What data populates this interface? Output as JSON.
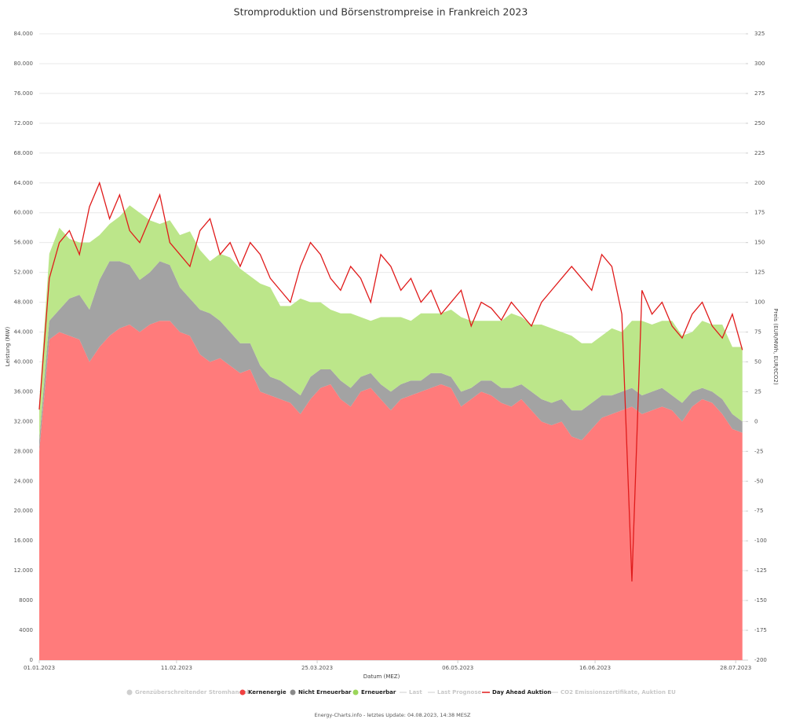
{
  "chart_data": {
    "type": "stacked_area_line",
    "title": "Stromproduktion und Börsenstrompreise in Frankreich 2023",
    "x_label": "Datum (MEZ)",
    "y_label": "Leistung (MW)",
    "y2_label": "Preis (EUR/MWh, EUR/tCO2)",
    "footer": "Energy-Charts.info - letztes Update: 04.08.2023, 14:38 MESZ",
    "x": [
      "01.01.2023",
      "04.01.2023",
      "07.01.2023",
      "10.01.2023",
      "13.01.2023",
      "16.01.2023",
      "19.01.2023",
      "22.01.2023",
      "25.01.2023",
      "28.01.2023",
      "31.01.2023",
      "03.02.2023",
      "06.02.2023",
      "09.02.2023",
      "12.02.2023",
      "15.02.2023",
      "18.02.2023",
      "21.02.2023",
      "24.02.2023",
      "27.02.2023",
      "02.03.2023",
      "05.03.2023",
      "08.03.2023",
      "11.03.2023",
      "14.03.2023",
      "17.03.2023",
      "20.03.2023",
      "23.03.2023",
      "26.03.2023",
      "29.03.2023",
      "01.04.2023",
      "04.04.2023",
      "07.04.2023",
      "10.04.2023",
      "13.04.2023",
      "16.04.2023",
      "19.04.2023",
      "22.04.2023",
      "25.04.2023",
      "28.04.2023",
      "01.05.2023",
      "04.05.2023",
      "07.05.2023",
      "10.05.2023",
      "13.05.2023",
      "16.05.2023",
      "19.05.2023",
      "22.05.2023",
      "25.05.2023",
      "28.05.2023",
      "31.05.2023",
      "03.06.2023",
      "06.06.2023",
      "09.06.2023",
      "12.06.2023",
      "15.06.2023",
      "18.06.2023",
      "21.06.2023",
      "24.06.2023",
      "27.06.2023",
      "30.06.2023",
      "03.07.2023",
      "06.07.2023",
      "09.07.2023",
      "12.07.2023",
      "15.07.2023",
      "18.07.2023",
      "21.07.2023",
      "24.07.2023",
      "27.07.2023",
      "30.07.2023"
    ],
    "xlim": [
      "01.01.2023",
      "31.07.2023"
    ],
    "xticks": [
      "01.01.2023",
      "11.02.2023",
      "25.03.2023",
      "06.05.2023",
      "16.06.2023",
      "28.07.2023"
    ],
    "ylim": [
      0,
      84000
    ],
    "yticks": [
      0,
      4000,
      8000,
      {
        "value": 12000,
        "label": "12.000"
      },
      {
        "value": 16000,
        "label": "16.000"
      },
      {
        "value": 20000,
        "label": "20.000"
      },
      {
        "value": 24000,
        "label": "24.000"
      },
      {
        "value": 28000,
        "label": "28.000"
      },
      {
        "value": 32000,
        "label": "32.000"
      },
      {
        "value": 36000,
        "label": "36.000"
      },
      {
        "value": 40000,
        "label": "40.000"
      },
      {
        "value": 44000,
        "label": "44.000"
      },
      {
        "value": 48000,
        "label": "48.000"
      },
      {
        "value": 52000,
        "label": "52.000"
      },
      {
        "value": 56000,
        "label": "56.000"
      },
      {
        "value": 60000,
        "label": "60.000"
      },
      {
        "value": 64000,
        "label": "64.000"
      },
      {
        "value": 68000,
        "label": "68.000"
      },
      {
        "value": 72000,
        "label": "72.000"
      },
      {
        "value": 76000,
        "label": "76.000"
      },
      {
        "value": 80000,
        "label": "80.000"
      },
      {
        "value": 84000,
        "label": "84.000"
      }
    ],
    "y2lim": [
      -200,
      325
    ],
    "y2ticks": [
      -200,
      -175,
      -150,
      -125,
      -100,
      -75,
      -50,
      -25,
      0,
      25,
      50,
      75,
      100,
      125,
      150,
      175,
      200,
      225,
      250,
      275,
      300,
      325
    ],
    "grid": true,
    "series": [
      {
        "name": "Kernenergie",
        "color": "#ff7b7b",
        "stacked": true,
        "values": [
          28000,
          43000,
          44000,
          43500,
          43000,
          40000,
          42000,
          43500,
          44500,
          45000,
          44000,
          45000,
          45500,
          45500,
          44000,
          43500,
          41000,
          40000,
          40500,
          39500,
          38500,
          39000,
          36000,
          35500,
          35000,
          34500,
          33000,
          35000,
          36500,
          37000,
          35000,
          34000,
          36000,
          36500,
          35000,
          33500,
          35000,
          35500,
          36000,
          36500,
          37000,
          36500,
          34000,
          35000,
          36000,
          35500,
          34500,
          34000,
          35000,
          33500,
          32000,
          31500,
          32000,
          30000,
          29500,
          31000,
          32500,
          33000,
          33500,
          34000,
          33000,
          33500,
          34000,
          33500,
          32000,
          34000,
          35000,
          34500,
          33000,
          31000,
          30500
        ]
      },
      {
        "name": "Nicht Erneuerbar",
        "color": "#a3a3a3",
        "stacked": true,
        "values": [
          1500,
          2500,
          3000,
          5000,
          6000,
          7000,
          9000,
          10000,
          9000,
          8000,
          7000,
          7000,
          8000,
          7500,
          6000,
          5000,
          6000,
          6500,
          5000,
          4500,
          4000,
          3500,
          3500,
          2500,
          2500,
          2000,
          2500,
          3000,
          2500,
          2000,
          2500,
          2500,
          2000,
          2000,
          2000,
          2500,
          2000,
          2000,
          1500,
          2000,
          1500,
          1500,
          2000,
          1500,
          1500,
          2000,
          2000,
          2500,
          2000,
          2500,
          3000,
          3000,
          3000,
          3500,
          4000,
          3500,
          3000,
          2500,
          2500,
          2500,
          2500,
          2500,
          2500,
          2000,
          2500,
          2000,
          1500,
          1500,
          2000,
          2000,
          1500
        ]
      },
      {
        "name": "Erneuerbar",
        "color": "#bce68a",
        "stacked": true,
        "values": [
          5000,
          9000,
          11000,
          8000,
          7000,
          9000,
          6000,
          5000,
          6000,
          8000,
          9000,
          7000,
          5000,
          6000,
          7000,
          9000,
          8000,
          7000,
          9000,
          10000,
          10000,
          9000,
          11000,
          12000,
          10000,
          11000,
          13000,
          10000,
          9000,
          8000,
          9000,
          10000,
          8000,
          7000,
          9000,
          10000,
          9000,
          8000,
          9000,
          8000,
          8000,
          9000,
          10000,
          9000,
          8000,
          8000,
          9000,
          10000,
          9000,
          9000,
          10000,
          10000,
          9000,
          10000,
          9000,
          8000,
          8000,
          9000,
          8000,
          9000,
          10000,
          9000,
          9000,
          10000,
          9000,
          8000,
          9000,
          9000,
          10000,
          9000,
          10000
        ]
      },
      {
        "name": "Day Ahead Auktion",
        "color": "#e01b1b",
        "axis": "y2",
        "values": [
          10,
          120,
          150,
          160,
          140,
          180,
          200,
          170,
          190,
          160,
          150,
          170,
          190,
          150,
          140,
          130,
          160,
          170,
          140,
          150,
          130,
          150,
          140,
          120,
          110,
          100,
          130,
          150,
          140,
          120,
          110,
          130,
          120,
          100,
          140,
          130,
          110,
          120,
          100,
          110,
          90,
          100,
          110,
          80,
          100,
          95,
          85,
          100,
          90,
          80,
          100,
          110,
          120,
          130,
          120,
          110,
          140,
          130,
          90,
          -134,
          110,
          90,
          100,
          80,
          70,
          90,
          100,
          80,
          70,
          90,
          60
        ]
      }
    ],
    "inactive_legend": [
      "Grenzüberschreitender Stromhandel",
      "Last",
      "Last Prognose",
      "CO2 Emissionszertifikate, Auktion EU"
    ]
  }
}
